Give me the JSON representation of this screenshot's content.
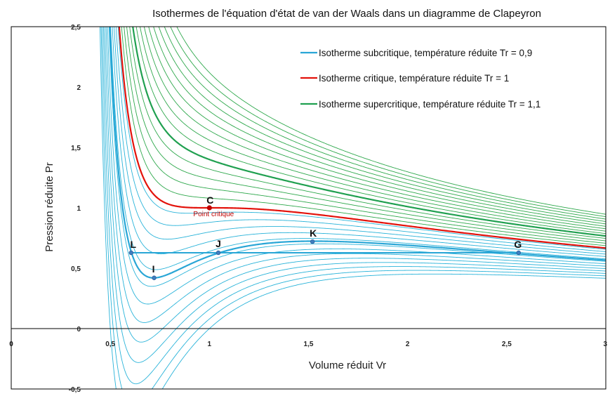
{
  "chart_data": {
    "type": "line",
    "title": "Isothermes de l'équation d'état de van der Waals dans un diagramme de Clapeyron",
    "xlabel": "Volume réduit Vr",
    "ylabel": "Pression réduite Pr",
    "xlim": [
      0,
      3
    ],
    "ylim": [
      -0.5,
      2.5
    ],
    "x_ticks": [
      "0",
      "0,5",
      "1",
      "1,5",
      "2",
      "2,5",
      "3"
    ],
    "y_ticks": [
      "-0,5",
      "0",
      "0,5",
      "1",
      "1,5",
      "2",
      "2,5"
    ],
    "grid": false,
    "legend_position": "top-right",
    "series": [
      {
        "name": "Isotherme subcritique, température réduite Tr = 0,9",
        "Tr": 0.9,
        "color": "#29a6d6"
      },
      {
        "name": "Isotherme critique, température réduite Tr = 1",
        "Tr": 1.0,
        "color": "#e3120b"
      },
      {
        "name": "Isotherme supercritique, température réduite Tr = 1,1",
        "Tr": 1.1,
        "color": "#20a050"
      }
    ],
    "thin_isotherms": {
      "subcritical_Tr": [
        0.75,
        0.77,
        0.79,
        0.81,
        0.83,
        0.85,
        0.87,
        0.89,
        0.91,
        0.93,
        0.95,
        0.97,
        0.99
      ],
      "supercritical_Tr": [
        1.02,
        1.04,
        1.06,
        1.08,
        1.1,
        1.12,
        1.14,
        1.16,
        1.18,
        1.2,
        1.22,
        1.24,
        1.26,
        1.28
      ],
      "subcritical_color": "#29b3d9",
      "supercritical_color": "#2ea84c"
    },
    "maxwell_pressure": 0.628,
    "points": [
      {
        "label": "C",
        "x": 1.0,
        "y": 1.0,
        "note": "Point critique"
      },
      {
        "label": "L",
        "x": 0.605,
        "y": 0.628
      },
      {
        "label": "I",
        "x": 0.721,
        "y": 0.42
      },
      {
        "label": "J",
        "x": 1.045,
        "y": 0.628
      },
      {
        "label": "K",
        "x": 1.52,
        "y": 0.72
      },
      {
        "label": "G",
        "x": 2.56,
        "y": 0.628
      }
    ]
  }
}
